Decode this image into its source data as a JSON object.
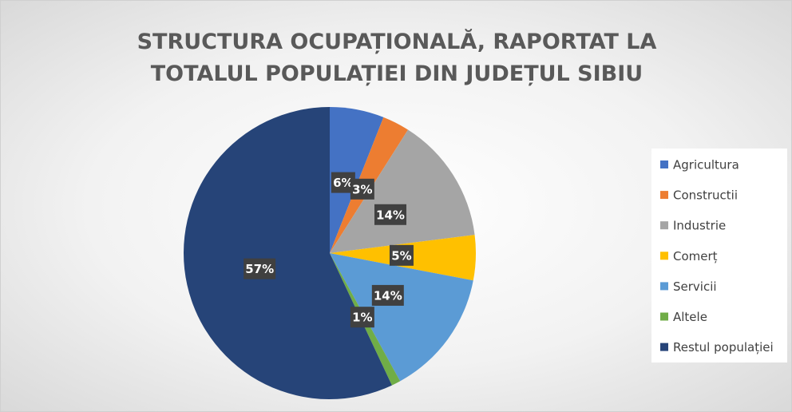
{
  "chart_data": {
    "type": "pie",
    "title": "STRUCTURA OCUPAȚIONALĂ, RAPORTAT LA TOTALUL POPULAȚIEI DIN JUDEȚUL SIBIU",
    "categories": [
      "Agricultura",
      "Constructii",
      "Industrie",
      "Comerț",
      "Servicii",
      "Altele",
      "Restul populației"
    ],
    "values": [
      6,
      3,
      14,
      5,
      14,
      1,
      57
    ],
    "value_labels": [
      "6%",
      "3%",
      "14%",
      "5%",
      "14%",
      "1%",
      "57%"
    ],
    "colors": [
      "#4472c4",
      "#ed7d31",
      "#a5a5a5",
      "#ffc000",
      "#5b9bd5",
      "#70ad47",
      "#264478"
    ],
    "legend": "right"
  }
}
